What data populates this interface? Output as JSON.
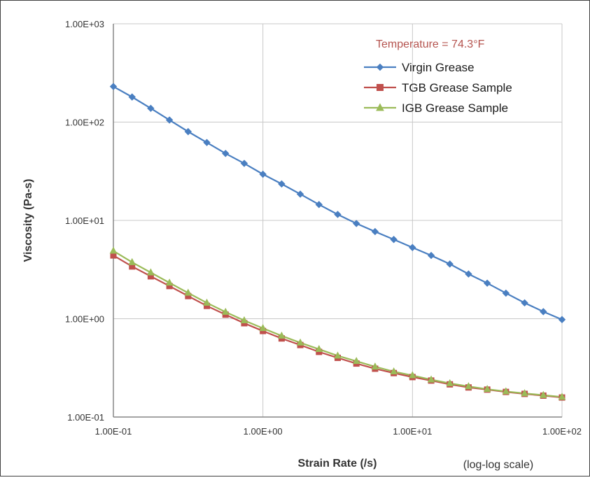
{
  "chart_data": {
    "type": "line",
    "xscale": "log",
    "yscale": "log",
    "xlim": [
      0.1,
      100
    ],
    "ylim": [
      0.1,
      1000
    ],
    "xticks": [
      "1.00E-01",
      "1.00E+00",
      "1.00E+01",
      "1.00E+02"
    ],
    "yticks": [
      "1.00E-01",
      "1.00E+00",
      "1.00E+01",
      "1.00E+02",
      "1.00E+03"
    ],
    "xlabel": "Strain Rate (/s)",
    "ylabel": "Viscosity (Pa-s)",
    "scale_note": "(log-log scale)",
    "annotation": "Temperature = 74.3°F",
    "grid": "major",
    "legend": "top-right",
    "x": [
      0.1,
      0.1334,
      0.1778,
      0.2371,
      0.3162,
      0.4217,
      0.5623,
      0.7499,
      1.0,
      1.334,
      1.778,
      2.371,
      3.162,
      4.217,
      5.623,
      7.499,
      10.0,
      13.34,
      17.78,
      23.71,
      31.62,
      42.17,
      56.23,
      74.99,
      100.0
    ],
    "series": [
      {
        "name": "Virgin Grease",
        "color": "#4a7fc1",
        "marker": "diamond",
        "values": [
          230,
          180,
          138,
          105,
          80,
          62,
          48,
          38,
          29.5,
          23.5,
          18.5,
          14.5,
          11.5,
          9.3,
          7.7,
          6.4,
          5.3,
          4.4,
          3.6,
          2.85,
          2.3,
          1.82,
          1.45,
          1.18,
          0.98
        ]
      },
      {
        "name": "TGB Grease Sample",
        "color": "#c0504d",
        "marker": "square",
        "values": [
          4.4,
          3.4,
          2.7,
          2.15,
          1.7,
          1.35,
          1.1,
          0.9,
          0.75,
          0.63,
          0.54,
          0.46,
          0.4,
          0.35,
          0.31,
          0.28,
          0.255,
          0.235,
          0.215,
          0.2,
          0.19,
          0.18,
          0.172,
          0.165,
          0.158
        ]
      },
      {
        "name": "IGB Grease Sample",
        "color": "#9bbb59",
        "marker": "triangle",
        "values": [
          4.9,
          3.75,
          2.95,
          2.32,
          1.83,
          1.45,
          1.17,
          0.96,
          0.8,
          0.67,
          0.57,
          0.49,
          0.42,
          0.37,
          0.325,
          0.29,
          0.265,
          0.24,
          0.22,
          0.205,
          0.192,
          0.182,
          0.174,
          0.167,
          0.16
        ]
      }
    ]
  }
}
